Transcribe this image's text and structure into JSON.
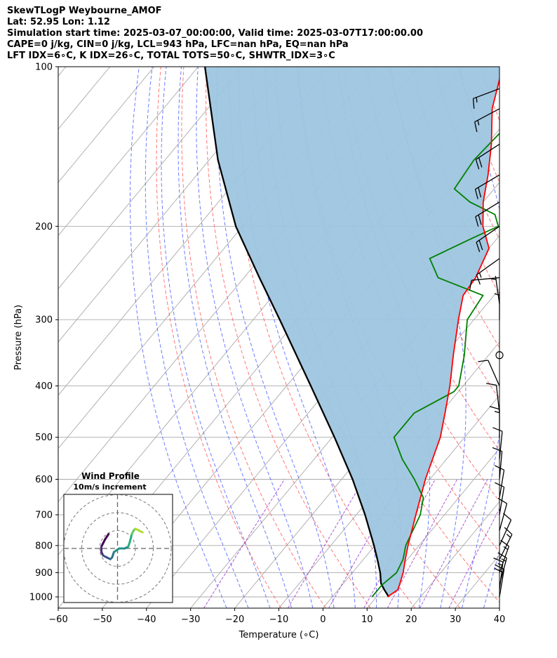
{
  "header": {
    "line1": "SkewTLogP Weybourne_AMOF",
    "line2": "Lat: 52.95   Lon: 1.12",
    "line3": "Simulation start time: 2025-03-07_00:00:00, Valid time: 2025-03-07T17:00:00.00",
    "line4": "CAPE=0 j/kg, CIN=0 j/kg, LCL=943 hPa, LFC=nan hPa, EQ=nan hPa",
    "line5": "LFT IDX=6∘C, K IDX=26∘C, TOTAL TOTS=50∘C, SHWTR_IDX=3∘C"
  },
  "colors": {
    "temperature": "#ff0000",
    "dewpoint": "#008000",
    "parcel": "#000000",
    "cape_fill": "#9ec5df",
    "dry_adiabat": "#ff5555",
    "moist_adiabat": "#5566ff",
    "mixing_ratio": "#9933cc",
    "isotherm": "#aaaaaa"
  },
  "chart_data": {
    "type": "line",
    "subtype": "skew-t log-p",
    "xlabel": "Temperature (∘C)",
    "ylabel": "Pressure (hPa)",
    "xlim": [
      -60,
      40
    ],
    "ylim": [
      1050,
      100
    ],
    "yscale": "log",
    "x_ticks": [
      "−60",
      "−50",
      "−40",
      "−30",
      "−20",
      "−10",
      "0",
      "10",
      "20",
      "30",
      "40"
    ],
    "y_ticks": [
      "100",
      "200",
      "300",
      "400",
      "500",
      "600",
      "700",
      "800",
      "900",
      "1000"
    ],
    "series": [
      {
        "name": "temperature",
        "pressure": [
          1000,
          970,
          950,
          900,
          850,
          800,
          700,
          600,
          500,
          450,
          400,
          350,
          300,
          270,
          250,
          220,
          200,
          180,
          160,
          140,
          120,
          100
        ],
        "values": [
          12.5,
          13.5,
          13.0,
          11.5,
          9.5,
          7.5,
          3.5,
          -1.0,
          -5.5,
          -9.0,
          -13.0,
          -18.0,
          -23.5,
          -27.0,
          -27.5,
          -30.0,
          -35.5,
          -40.0,
          -44.0,
          -49.0,
          -55.5,
          -61.0
        ]
      },
      {
        "name": "dewpoint",
        "pressure": [
          1000,
          950,
          900,
          850,
          800,
          700,
          650,
          600,
          550,
          500,
          450,
          410,
          400,
          350,
          320,
          300,
          270,
          250,
          230,
          210,
          200,
          190,
          180,
          170,
          150,
          130,
          110,
          100
        ],
        "values": [
          9.0,
          9.0,
          10.0,
          9.0,
          7.0,
          4.5,
          2.0,
          -3.5,
          -10.0,
          -16.0,
          -16.0,
          -11.0,
          -11.0,
          -15.5,
          -19.0,
          -21.5,
          -22.5,
          -36.0,
          -41.5,
          -35.5,
          -32.0,
          -35.0,
          -43.0,
          -49.0,
          -50.0,
          -49.0,
          -48.0,
          -48.0
        ]
      },
      {
        "name": "parcel",
        "pressure": [
          1000,
          970,
          943,
          900,
          850,
          800,
          700,
          600,
          500,
          400,
          300,
          250,
          200,
          150,
          100
        ],
        "values": [
          12.8,
          10.5,
          8.5,
          6.3,
          3.2,
          -0.2,
          -8.0,
          -17.5,
          -29.5,
          -44.5,
          -64.0,
          -76.5,
          -91.5,
          -108.0,
          -128.5
        ]
      }
    ],
    "dry_adiabats_K": [
      260,
      270,
      280,
      290,
      300,
      310,
      320,
      330,
      340,
      350,
      360,
      370,
      380,
      390,
      400,
      410,
      420,
      430,
      440,
      450,
      460,
      470,
      480
    ],
    "moist_adiabats_C": [
      -25,
      -20,
      -15,
      -10,
      -5,
      0,
      5,
      10,
      15,
      20,
      25,
      30,
      35,
      40
    ],
    "mixing_ratio_gkg": [
      0.4,
      2,
      4,
      7,
      10,
      16,
      24
    ],
    "wind_barbs": {
      "pressure": [
        1000,
        970,
        950,
        900,
        850,
        800,
        750,
        700,
        650,
        600,
        550,
        500,
        450,
        400,
        350,
        300,
        280,
        250,
        230,
        200,
        180,
        160,
        140,
        120,
        110
      ],
      "u_kt": [
        -3,
        -2,
        -4,
        -5,
        -6,
        -5,
        -3,
        -2,
        -2,
        -1,
        -1,
        0,
        1,
        4,
        0,
        0,
        1,
        11,
        14,
        16,
        18,
        17,
        17,
        15,
        16
      ],
      "v_kt": [
        -18,
        -16,
        -15,
        -14,
        -12,
        -11,
        -11,
        -12,
        -12,
        -11,
        -10,
        -14,
        -9,
        -9,
        0,
        -5,
        -7,
        1,
        10,
        11,
        11,
        10,
        11,
        8,
        6
      ]
    },
    "hodograph": {
      "title": "Wind Profile",
      "subtitle": "10m/s increment",
      "rings_ms": [
        10,
        20,
        30
      ],
      "points": [
        [
          -5,
          8
        ],
        [
          -7,
          5
        ],
        [
          -8,
          3
        ],
        [
          -9,
          1
        ],
        [
          -9,
          -2
        ],
        [
          -8,
          -4
        ],
        [
          -6,
          -5
        ],
        [
          -4,
          -6
        ],
        [
          -3,
          -5
        ],
        [
          -2,
          -2
        ],
        [
          1,
          0
        ],
        [
          4,
          0
        ],
        [
          6,
          1
        ],
        [
          7,
          4
        ],
        [
          8,
          8
        ],
        [
          9,
          10
        ],
        [
          10,
          11
        ],
        [
          12,
          10
        ],
        [
          14,
          9
        ]
      ]
    }
  }
}
